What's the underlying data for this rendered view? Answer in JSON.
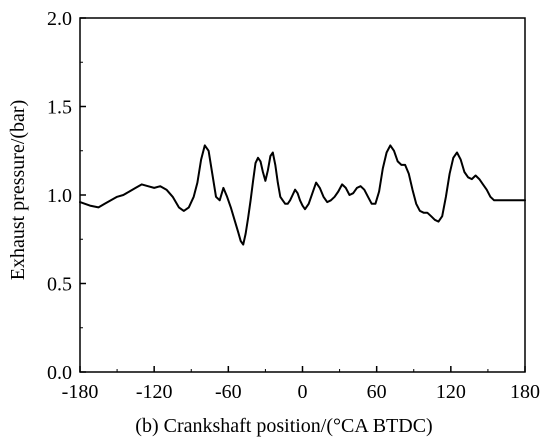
{
  "chart_data": {
    "type": "line",
    "title": "",
    "xlabel": "(b) Crankshaft position/(°CA BTDC)",
    "ylabel": "Exhaust pressure/(bar)",
    "xlim": [
      -180,
      180
    ],
    "ylim": [
      0.0,
      2.0
    ],
    "xticks": [
      -180,
      -120,
      -60,
      0,
      60,
      120,
      180
    ],
    "xtick_labels": [
      "-180",
      "-120",
      "-60",
      "0",
      "60",
      "120",
      "180"
    ],
    "yticks": [
      0.0,
      0.5,
      1.0,
      1.5,
      2.0
    ],
    "ytick_labels": [
      "0.0",
      "0.5",
      "1.0",
      "1.5",
      "2.0"
    ],
    "grid": false,
    "series": [
      {
        "color": "#000000",
        "x": [
          -180,
          -172,
          -165,
          -160,
          -155,
          -150,
          -145,
          -140,
          -135,
          -130,
          -125,
          -120,
          -115,
          -110,
          -105,
          -100,
          -96,
          -92,
          -88,
          -85,
          -82,
          -79,
          -76,
          -73,
          -70,
          -67,
          -64,
          -61,
          -58,
          -55,
          -52,
          -50,
          -48,
          -46,
          -44,
          -42,
          -40,
          -38,
          -36,
          -34,
          -32,
          -30,
          -28,
          -26,
          -24,
          -22,
          -20,
          -18,
          -16,
          -14,
          -12,
          -10,
          -8,
          -6,
          -4,
          -2,
          0,
          2,
          5,
          8,
          11,
          14,
          17,
          20,
          23,
          26,
          29,
          32,
          35,
          38,
          41,
          44,
          47,
          50,
          53,
          56,
          59,
          62,
          65,
          68,
          71,
          74,
          77,
          80,
          83,
          86,
          89,
          92,
          95,
          98,
          101,
          104,
          107,
          110,
          113,
          116,
          119,
          122,
          125,
          128,
          131,
          134,
          137,
          140,
          143,
          146,
          149,
          152,
          155,
          158,
          161,
          164,
          167,
          170,
          173,
          176,
          180
        ],
        "y": [
          0.96,
          0.94,
          0.93,
          0.95,
          0.97,
          0.99,
          1.0,
          1.02,
          1.04,
          1.06,
          1.05,
          1.04,
          1.05,
          1.03,
          0.99,
          0.93,
          0.91,
          0.93,
          0.99,
          1.07,
          1.2,
          1.28,
          1.25,
          1.12,
          0.99,
          0.97,
          1.04,
          0.99,
          0.93,
          0.86,
          0.79,
          0.74,
          0.72,
          0.78,
          0.87,
          0.97,
          1.08,
          1.18,
          1.21,
          1.19,
          1.13,
          1.08,
          1.14,
          1.22,
          1.24,
          1.17,
          1.07,
          0.99,
          0.97,
          0.95,
          0.95,
          0.97,
          1.0,
          1.03,
          1.01,
          0.97,
          0.94,
          0.92,
          0.95,
          1.01,
          1.07,
          1.04,
          0.99,
          0.96,
          0.97,
          0.99,
          1.02,
          1.06,
          1.04,
          1.0,
          1.01,
          1.04,
          1.05,
          1.03,
          0.99,
          0.95,
          0.95,
          1.02,
          1.15,
          1.24,
          1.28,
          1.25,
          1.19,
          1.17,
          1.17,
          1.12,
          1.03,
          0.95,
          0.91,
          0.9,
          0.9,
          0.88,
          0.86,
          0.85,
          0.88,
          0.99,
          1.12,
          1.21,
          1.24,
          1.2,
          1.13,
          1.1,
          1.09,
          1.11,
          1.09,
          1.06,
          1.03,
          0.99,
          0.97,
          0.97,
          0.97,
          0.97,
          0.97,
          0.97,
          0.97,
          0.97,
          0.97
        ]
      }
    ]
  }
}
